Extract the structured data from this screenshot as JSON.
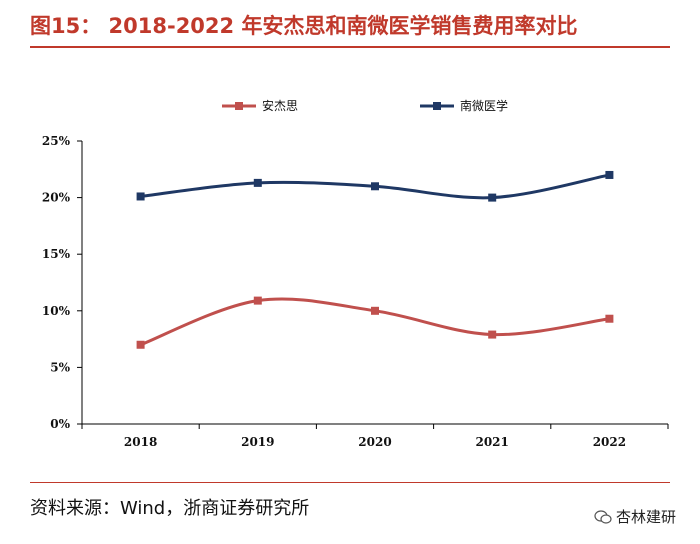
{
  "header": {
    "title": "图15： 2018-2022 年安杰思和南微医学销售费用率对比"
  },
  "footer": {
    "source": "资料来源：Wind，浙商证券研究所",
    "watermark": "杏林建研"
  },
  "colors": {
    "accent": "#c0392b",
    "series1": "#c0504d",
    "series2": "#1f3864"
  },
  "chart_data": {
    "type": "line",
    "title": "2018-2022 年安杰思和南微医学销售费用率对比",
    "xlabel": "",
    "ylabel": "",
    "categories": [
      "2018",
      "2019",
      "2020",
      "2021",
      "2022"
    ],
    "ylim": [
      0,
      25
    ],
    "yticks": [
      0,
      5,
      10,
      15,
      20,
      25
    ],
    "ytick_labels": [
      "0%",
      "5%",
      "10%",
      "15%",
      "20%",
      "25%"
    ],
    "legend_position": "top",
    "series": [
      {
        "name": "安杰思",
        "values": [
          7.0,
          10.9,
          10.0,
          7.9,
          9.3
        ],
        "color": "#c0504d"
      },
      {
        "name": "南微医学",
        "values": [
          20.1,
          21.3,
          21.0,
          20.0,
          22.0
        ],
        "color": "#1f3864"
      }
    ]
  }
}
